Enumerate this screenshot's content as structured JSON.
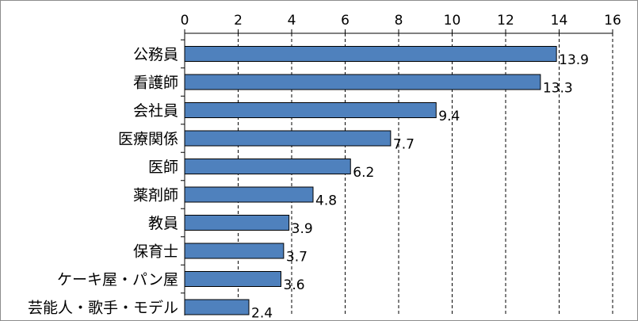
{
  "chart_data": {
    "type": "bar",
    "orientation": "horizontal",
    "categories": [
      "公務員",
      "看護師",
      "会社員",
      "医療関係",
      "医師",
      "薬剤師",
      "教員",
      "保育士",
      "ケーキ屋・パン屋",
      "芸能人・歌手・モデル"
    ],
    "values": [
      13.9,
      13.3,
      9.4,
      7.7,
      6.2,
      4.8,
      3.9,
      3.7,
      3.6,
      2.4
    ],
    "value_labels": [
      "13.9",
      "13.3",
      "9.4",
      "7.7",
      "6.2",
      "4.8",
      "3.9",
      "3.7",
      "3.6",
      "2.4"
    ],
    "xlim": [
      0,
      16
    ],
    "x_ticks": [
      0,
      2,
      4,
      6,
      8,
      10,
      12,
      14,
      16
    ],
    "x_tick_labels": [
      "0",
      "2",
      "4",
      "6",
      "8",
      "10",
      "12",
      "14",
      "16"
    ],
    "x_axis_position": "top",
    "grid": "vertical dashed",
    "bar_color": "#4f81bd",
    "bar_edge_color": "#000000",
    "title": "",
    "xlabel": "",
    "ylabel": ""
  }
}
